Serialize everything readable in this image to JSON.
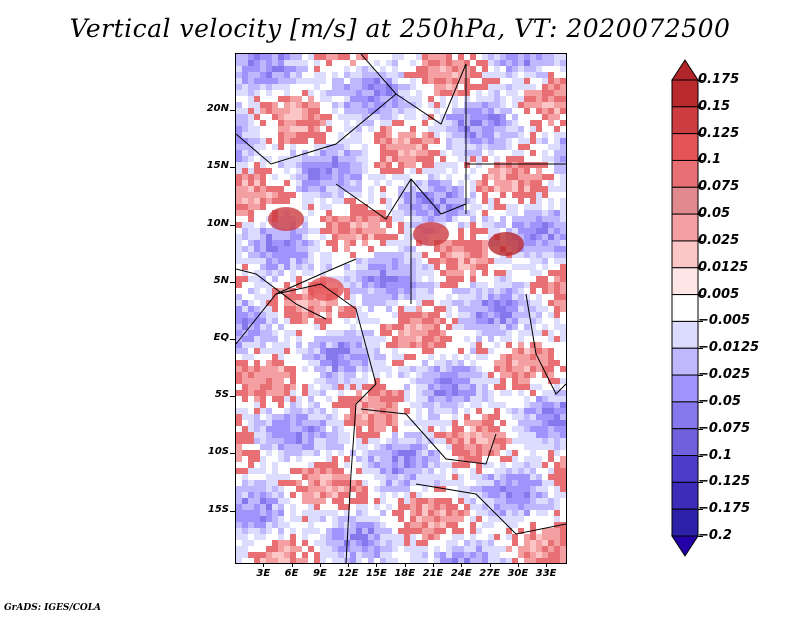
{
  "title": "Vertical velocity [m/s] at 250hPa, VT: 2020072500",
  "footer": "GrADS: IGES/COLA",
  "map": {
    "variable": "Vertical velocity",
    "units": "m/s",
    "level": "250hPa",
    "valid_time": "2020072500",
    "lat_ticks": [
      "20N",
      "15N",
      "10N",
      "5N",
      "EQ",
      "5S",
      "10S",
      "15S"
    ],
    "lat_values": [
      20,
      15,
      10,
      5,
      0,
      -5,
      -10,
      -15
    ],
    "lon_ticks": [
      "3E",
      "6E",
      "9E",
      "12E",
      "15E",
      "18E",
      "21E",
      "24E",
      "27E",
      "30E",
      "33E"
    ],
    "lon_values": [
      3,
      6,
      9,
      12,
      15,
      18,
      21,
      24,
      27,
      30,
      33
    ],
    "lat_range": [
      -19.5,
      25
    ],
    "lon_range": [
      0,
      35
    ]
  },
  "colorbar": {
    "labels": [
      "0.175",
      "0.15",
      "0.125",
      "0.1",
      "0.075",
      "0.05",
      "0.025",
      "0.0125",
      "0.005",
      "−0.005",
      "−0.0125",
      "−0.025",
      "−0.05",
      "−0.075",
      "−0.1",
      "−0.125",
      "−0.175",
      "−0.2"
    ],
    "colors": [
      "#b0262a",
      "#b82a2e",
      "#cc3c40",
      "#e45458",
      "#e87074",
      "#e08a8e",
      "#f4a0a2",
      "#fcc6c6",
      "#fee6e6",
      "#ffffff",
      "#dcdcfe",
      "#c0b8fe",
      "#a094fc",
      "#8478ec",
      "#7060dc",
      "#4c3ccc",
      "#3c2cba",
      "#2c20a8",
      "#2400a8"
    ]
  }
}
